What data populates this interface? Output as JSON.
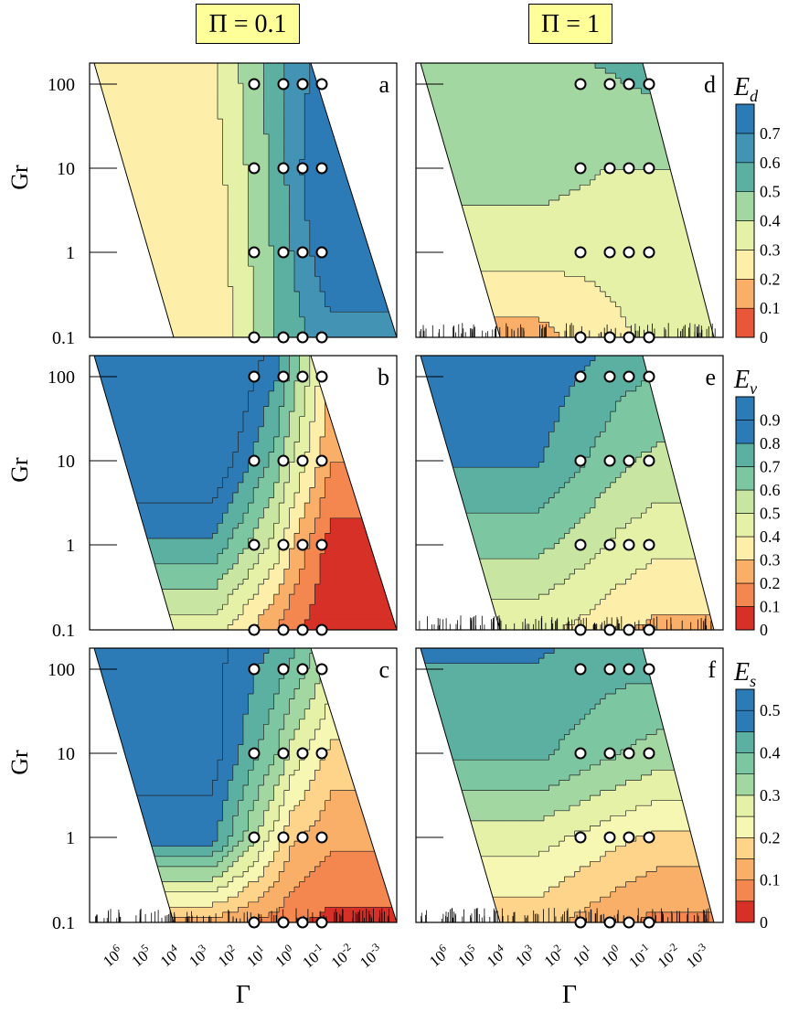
{
  "column_titles": [
    "Π = 0.1",
    "Π = 1"
  ],
  "colors": {
    "background": "#ffffff",
    "palette": [
      "#d73027",
      "#e9573b",
      "#f4874f",
      "#f9af68",
      "#fdd48a",
      "#fdeeaa",
      "#f6f7b2",
      "#e4f1a7",
      "#c8e6a1",
      "#a3d7a1",
      "#7cc7a2",
      "#5bb0a1",
      "#4393b4",
      "#2c7bb6"
    ],
    "marker_fill": "#ffffff",
    "marker_stroke": "#000000",
    "title_box": "#ffff99"
  },
  "chart_data": [
    {
      "type": "contour",
      "panel": "a",
      "column": "Π = 0.1",
      "row": 0,
      "quantity": "E_d",
      "colorbar_label": "E",
      "colorbar_subscript": "d",
      "xlabel": "",
      "ylabel": "Gr",
      "x_scale": "log",
      "y_scale": "log",
      "x_range": [
        "1e7",
        "1e-3.7"
      ],
      "y_range": [
        0.1,
        200
      ],
      "x_ticks": [
        "10^6",
        "10^5",
        "10^4",
        "10^3",
        "10^2",
        "10^1",
        "10^0",
        "10^-1",
        "10^-2",
        "10^-3"
      ],
      "y_ticks": [
        "0.1",
        "1",
        "10",
        "100"
      ],
      "contour_levels": [
        0,
        0.1,
        0.2,
        0.3,
        0.4,
        0.5,
        0.6,
        0.7
      ],
      "colorbar_ticks": [
        "0",
        "0.1",
        "0.2",
        "0.3",
        "0.4",
        "0.5",
        "0.6",
        "0.7"
      ],
      "grid_Gamma": [
        "10^1.4",
        "10^0.5",
        "10^-0.05",
        "10^-0.6"
      ],
      "grid_Gr": [
        0.1,
        1,
        10,
        100
      ],
      "values_by_Gr_row": [
        [
          0.38,
          0.5,
          0.56,
          0.6
        ],
        [
          0.4,
          0.52,
          0.6,
          0.68
        ],
        [
          0.42,
          0.54,
          0.64,
          0.74
        ],
        [
          0.44,
          0.55,
          0.63,
          0.7
        ]
      ],
      "rug_marks": false
    },
    {
      "type": "contour",
      "panel": "b",
      "column": "Π = 0.1",
      "row": 1,
      "quantity": "E_v",
      "colorbar_label": "E",
      "colorbar_subscript": "v",
      "xlabel": "",
      "ylabel": "Gr",
      "x_scale": "log",
      "y_scale": "log",
      "x_range": [
        "1e7",
        "1e-3.7"
      ],
      "y_range": [
        0.1,
        200
      ],
      "x_ticks": [
        "10^6",
        "10^5",
        "10^4",
        "10^3",
        "10^2",
        "10^1",
        "10^0",
        "10^-1",
        "10^-2",
        "10^-3"
      ],
      "y_ticks": [
        "0.1",
        "1",
        "10",
        "100"
      ],
      "contour_levels": [
        0,
        0.1,
        0.2,
        0.3,
        0.4,
        0.5,
        0.6,
        0.7,
        0.8,
        0.9
      ],
      "colorbar_ticks": [
        "0",
        "0.1",
        "0.2",
        "0.3",
        "0.4",
        "0.5",
        "0.6",
        "0.7",
        "0.8",
        "0.9"
      ],
      "grid_Gamma": [
        "10^1.4",
        "10^0.5",
        "10^-0.05",
        "10^-0.6"
      ],
      "grid_Gr": [
        0.1,
        1,
        10,
        100
      ],
      "values_by_Gr_row": [
        [
          0.3,
          0.2,
          0.12,
          0.08
        ],
        [
          0.58,
          0.45,
          0.3,
          0.2
        ],
        [
          0.8,
          0.65,
          0.5,
          0.38
        ],
        [
          0.92,
          0.8,
          0.65,
          0.5
        ]
      ],
      "rug_marks": false
    },
    {
      "type": "contour",
      "panel": "c",
      "column": "Π = 0.1",
      "row": 2,
      "quantity": "E_s",
      "colorbar_label": "E",
      "colorbar_subscript": "s",
      "xlabel": "Γ",
      "ylabel": "Gr",
      "x_scale": "log",
      "y_scale": "log",
      "x_range": [
        "1e7",
        "1e-3.7"
      ],
      "y_range": [
        0.1,
        200
      ],
      "x_ticks": [
        "10^6",
        "10^5",
        "10^4",
        "10^3",
        "10^2",
        "10^1",
        "10^0",
        "10^-1",
        "10^-2",
        "10^-3"
      ],
      "y_ticks": [
        "0.1",
        "1",
        "10",
        "100"
      ],
      "contour_levels": [
        0,
        0.05,
        0.1,
        0.15,
        0.2,
        0.25,
        0.3,
        0.35,
        0.4,
        0.45,
        0.5
      ],
      "colorbar_ticks": [
        "0",
        "0.1",
        "0.2",
        "0.3",
        "0.4",
        "0.5"
      ],
      "grid_Gamma": [
        "10^1.4",
        "10^0.5",
        "10^-0.05",
        "10^-0.6"
      ],
      "grid_Gr": [
        0.1,
        1,
        10,
        100
      ],
      "values_by_Gr_row": [
        [
          0.1,
          0.08,
          0.06,
          0.05
        ],
        [
          0.32,
          0.22,
          0.16,
          0.14
        ],
        [
          0.42,
          0.35,
          0.28,
          0.24
        ],
        [
          0.46,
          0.42,
          0.38,
          0.34
        ]
      ],
      "rug_marks": true
    },
    {
      "type": "contour",
      "panel": "d",
      "column": "Π = 1",
      "row": 0,
      "quantity": "E_d",
      "xlabel": "",
      "ylabel": "",
      "x_scale": "log",
      "y_scale": "log",
      "x_range": [
        "1e7",
        "1e-3.7"
      ],
      "y_range": [
        0.1,
        200
      ],
      "x_ticks": [
        "10^6",
        "10^5",
        "10^4",
        "10^3",
        "10^2",
        "10^1",
        "10^0",
        "10^-1",
        "10^-2",
        "10^-3"
      ],
      "contour_levels": [
        0,
        0.1,
        0.2,
        0.3,
        0.4,
        0.5,
        0.6,
        0.7
      ],
      "grid_Gamma": [
        "10^1.4",
        "10^0.5",
        "10^-0.05",
        "10^-0.6"
      ],
      "grid_Gr": [
        0.1,
        1,
        10,
        100
      ],
      "values_by_Gr_row": [
        [
          0.22,
          0.26,
          0.28,
          0.3
        ],
        [
          0.33,
          0.33,
          0.34,
          0.35
        ],
        [
          0.42,
          0.4,
          0.4,
          0.4
        ],
        [
          0.48,
          0.48,
          0.49,
          0.5
        ]
      ],
      "rug_marks": true
    },
    {
      "type": "contour",
      "panel": "e",
      "column": "Π = 1",
      "row": 1,
      "quantity": "E_v",
      "xlabel": "",
      "ylabel": "",
      "x_scale": "log",
      "y_scale": "log",
      "x_range": [
        "1e7",
        "1e-3.7"
      ],
      "y_range": [
        0.1,
        200
      ],
      "x_ticks": [
        "10^6",
        "10^5",
        "10^4",
        "10^3",
        "10^2",
        "10^1",
        "10^0",
        "10^-1",
        "10^-2",
        "10^-3"
      ],
      "contour_levels": [
        0,
        0.1,
        0.2,
        0.3,
        0.4,
        0.5,
        0.6,
        0.7,
        0.8,
        0.9
      ],
      "grid_Gamma": [
        "10^1.4",
        "10^0.5",
        "10^-0.05",
        "10^-0.6"
      ],
      "grid_Gr": [
        0.1,
        1,
        10,
        100
      ],
      "values_by_Gr_row": [
        [
          0.38,
          0.35,
          0.32,
          0.3
        ],
        [
          0.55,
          0.5,
          0.47,
          0.45
        ],
        [
          0.72,
          0.66,
          0.62,
          0.6
        ],
        [
          0.8,
          0.76,
          0.73,
          0.71
        ]
      ],
      "rug_marks": true
    },
    {
      "type": "contour",
      "panel": "f",
      "column": "Π = 1",
      "row": 2,
      "quantity": "E_s",
      "xlabel": "Γ",
      "ylabel": "",
      "x_scale": "log",
      "y_scale": "log",
      "x_range": [
        "1e7",
        "1e-3.7"
      ],
      "y_range": [
        0.1,
        200
      ],
      "x_ticks": [
        "10^6",
        "10^5",
        "10^4",
        "10^3",
        "10^2",
        "10^1",
        "10^0",
        "10^-1",
        "10^-2",
        "10^-3"
      ],
      "contour_levels": [
        0,
        0.05,
        0.1,
        0.15,
        0.2,
        0.25,
        0.3,
        0.35,
        0.4,
        0.45,
        0.5
      ],
      "grid_Gamma": [
        "10^1.4",
        "10^0.5",
        "10^-0.05",
        "10^-0.6"
      ],
      "grid_Gr": [
        0.1,
        1,
        10,
        100
      ],
      "values_by_Gr_row": [
        [
          0.14,
          0.12,
          0.11,
          0.1
        ],
        [
          0.24,
          0.22,
          0.21,
          0.2
        ],
        [
          0.38,
          0.36,
          0.35,
          0.34
        ],
        [
          0.43,
          0.42,
          0.41,
          0.41
        ]
      ],
      "rug_marks": true
    }
  ]
}
